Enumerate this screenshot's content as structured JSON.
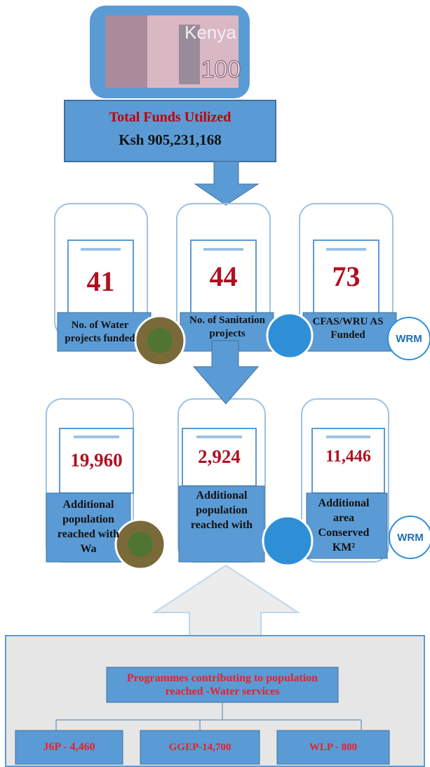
{
  "banner": {
    "country": "Kenya",
    "denomination": "100"
  },
  "total": {
    "title": "Total Funds Utilized",
    "value": "Ksh 905,231,168"
  },
  "projects": [
    {
      "value": "41",
      "label": "No. of Water projects funded"
    },
    {
      "value": "44",
      "label": "No. of Sanitation projects"
    },
    {
      "value": "73",
      "label": "CFAS/WRU AS Funded"
    }
  ],
  "reach": [
    {
      "value": "19,960",
      "label": "Additional population reached with Wa"
    },
    {
      "value": "2,924",
      "label": "Additional population reached with"
    },
    {
      "value": "11,446",
      "label": "Additional area Conserved KM²"
    }
  ],
  "logos": {
    "wrm": "WRM"
  },
  "programmes": {
    "title": "Programmes contributing to population reached -Water services",
    "items": [
      "J6P - 4,460",
      "GGEP-14,700",
      "WLP - 800"
    ]
  }
}
